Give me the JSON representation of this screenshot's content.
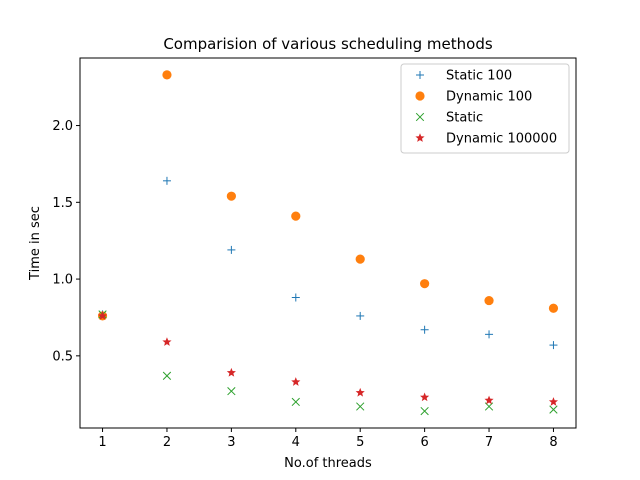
{
  "chart_data": {
    "type": "scatter",
    "title": "Comparision of various scheduling methods",
    "xlabel": "No.of threads",
    "ylabel": "Time in sec",
    "xlim": [
      0.65,
      8.35
    ],
    "ylim": [
      0.03,
      2.44
    ],
    "xticks": [
      1,
      2,
      3,
      4,
      5,
      6,
      7,
      8
    ],
    "yticks": [
      0.5,
      1.0,
      1.5,
      2.0
    ],
    "ytick_labels": [
      "0.5",
      "1.0",
      "1.5",
      "2.0"
    ],
    "legend_position": "top-right",
    "grid": false,
    "series": [
      {
        "name": "Static 100",
        "marker": "plus",
        "color": "#1f77b4",
        "x": [
          1,
          2,
          3,
          4,
          5,
          6,
          7,
          8
        ],
        "y": [
          0.77,
          1.64,
          1.19,
          0.88,
          0.76,
          0.67,
          0.64,
          0.57
        ]
      },
      {
        "name": "Dynamic 100",
        "marker": "circle",
        "color": "#ff7f0e",
        "x": [
          1,
          2,
          3,
          4,
          5,
          6,
          7,
          8
        ],
        "y": [
          0.76,
          2.33,
          1.54,
          1.41,
          1.13,
          0.97,
          0.86,
          0.81
        ]
      },
      {
        "name": "Static",
        "marker": "x",
        "color": "#2ca02c",
        "x": [
          1,
          2,
          3,
          4,
          5,
          6,
          7,
          8
        ],
        "y": [
          0.77,
          0.37,
          0.27,
          0.2,
          0.17,
          0.14,
          0.17,
          0.15
        ]
      },
      {
        "name": "Dynamic 100000",
        "marker": "star",
        "color": "#d62728",
        "x": [
          1,
          2,
          3,
          4,
          5,
          6,
          7,
          8
        ],
        "y": [
          0.76,
          0.59,
          0.39,
          0.33,
          0.26,
          0.23,
          0.21,
          0.2
        ]
      }
    ]
  }
}
